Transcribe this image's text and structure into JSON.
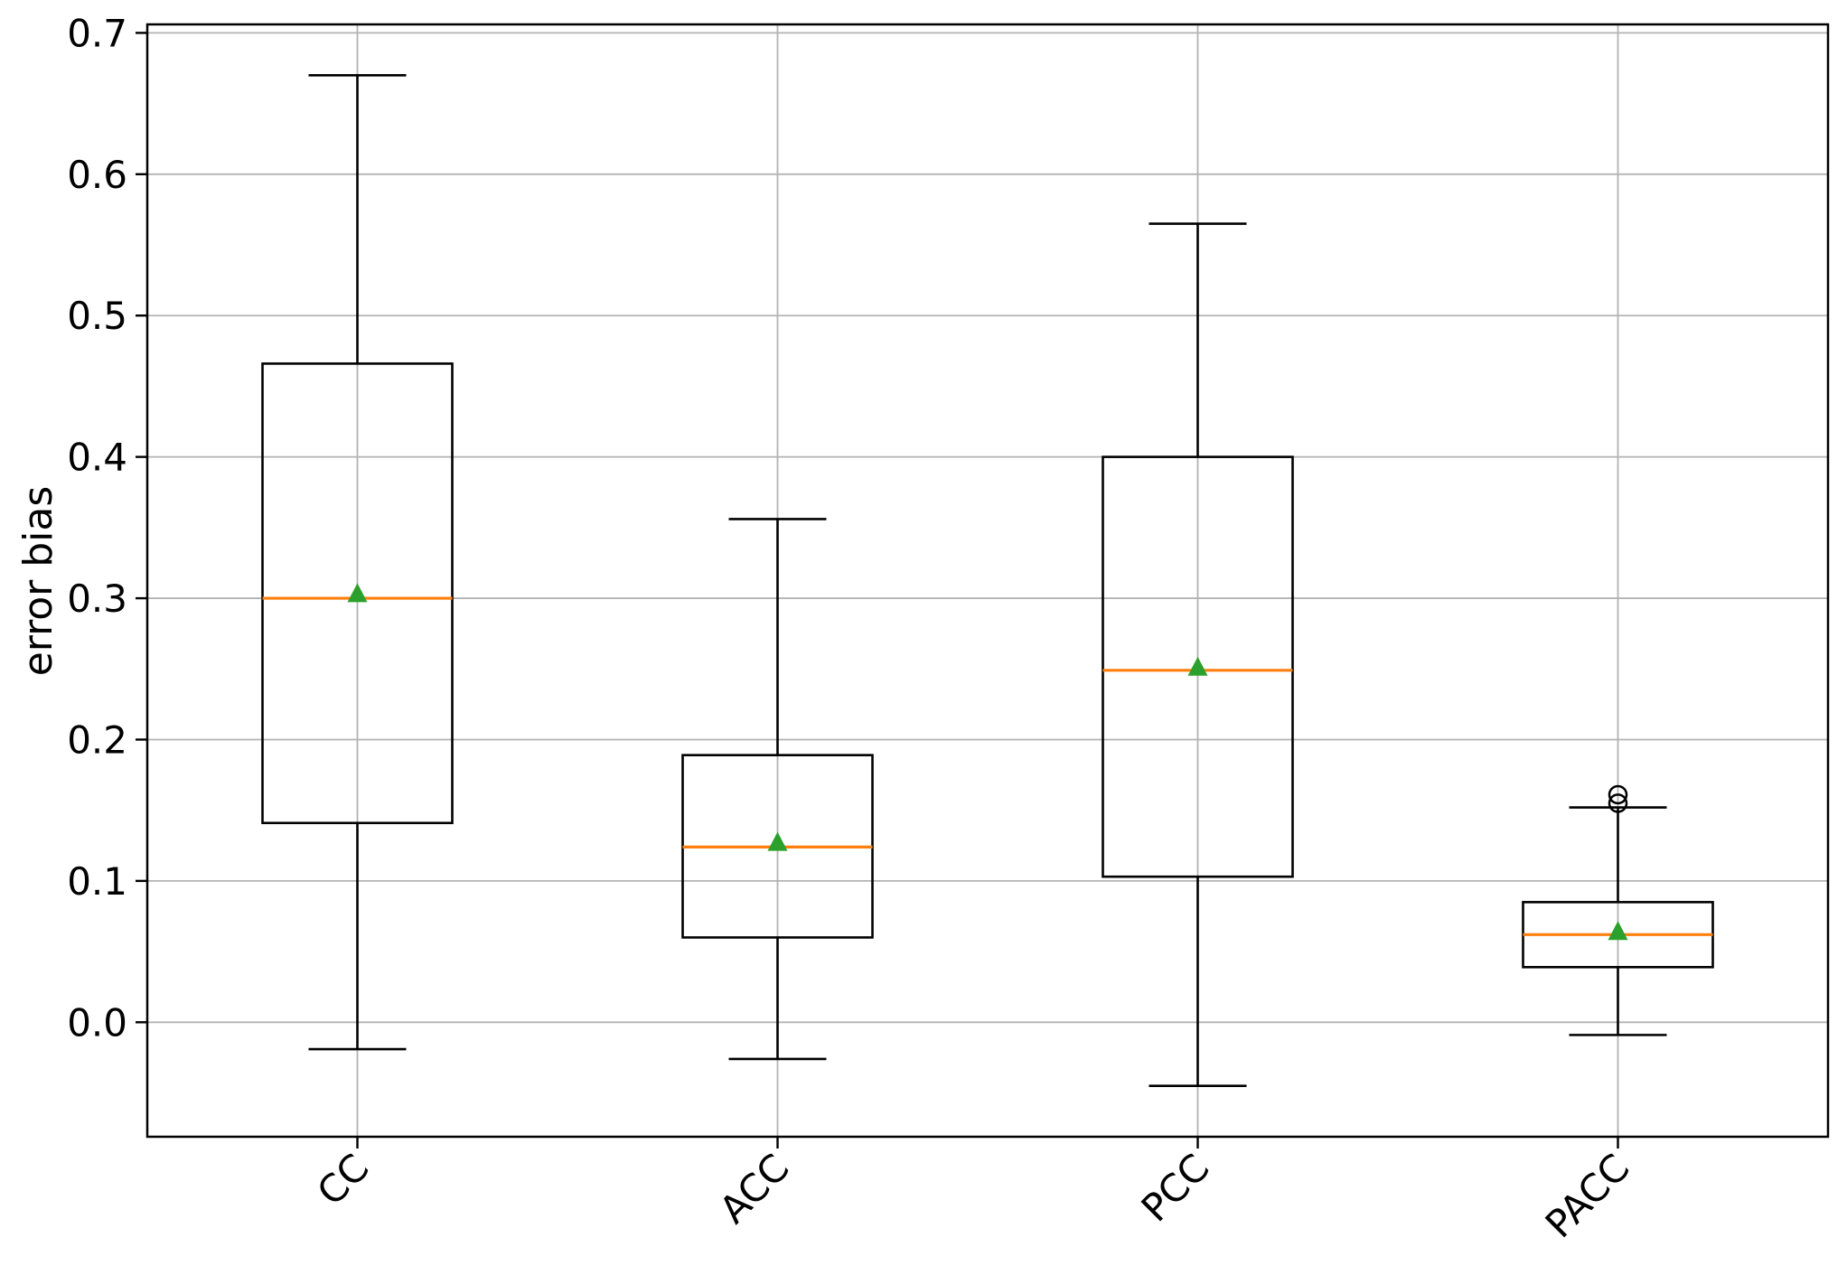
{
  "chart_data": {
    "type": "box",
    "title": "",
    "xlabel": "",
    "ylabel": "error bias",
    "categories": [
      "CC",
      "ACC",
      "PCC",
      "PACC"
    ],
    "ylim": [
      -0.081,
      0.706
    ],
    "grid": {
      "horizontal": true,
      "vertical": true,
      "style": "solid"
    },
    "legend": "none",
    "y_ticks": [
      {
        "value": 0.0,
        "label": "0.0"
      },
      {
        "value": 0.1,
        "label": "0.1"
      },
      {
        "value": 0.2,
        "label": "0.2"
      },
      {
        "value": 0.3,
        "label": "0.3"
      },
      {
        "value": 0.4,
        "label": "0.4"
      },
      {
        "value": 0.5,
        "label": "0.5"
      },
      {
        "value": 0.6,
        "label": "0.6"
      },
      {
        "value": 0.7,
        "label": "0.7"
      }
    ],
    "boxes": [
      {
        "category": "CC",
        "whisker_low": -0.019,
        "q1": 0.141,
        "median": 0.3,
        "q3": 0.466,
        "whisker_high": 0.67,
        "mean": 0.303,
        "outliers": []
      },
      {
        "category": "ACC",
        "whisker_low": -0.026,
        "q1": 0.06,
        "median": 0.124,
        "q3": 0.189,
        "whisker_high": 0.356,
        "mean": 0.127,
        "outliers": []
      },
      {
        "category": "PCC",
        "whisker_low": -0.045,
        "q1": 0.103,
        "median": 0.249,
        "q3": 0.4,
        "whisker_high": 0.565,
        "mean": 0.251,
        "outliers": []
      },
      {
        "category": "PACC",
        "whisker_low": -0.009,
        "q1": 0.039,
        "median": 0.062,
        "q3": 0.085,
        "whisker_high": 0.152,
        "mean": 0.064,
        "outliers": [
          0.155,
          0.161
        ]
      }
    ],
    "marker_styles": {
      "mean": "triangle-up",
      "outlier": "open-circle"
    },
    "colors": {
      "box_line": "#000000",
      "median": "#ff7f0e",
      "mean_marker": "#2ca02c",
      "grid": "#b3b3b3",
      "background": "#ffffff"
    }
  }
}
